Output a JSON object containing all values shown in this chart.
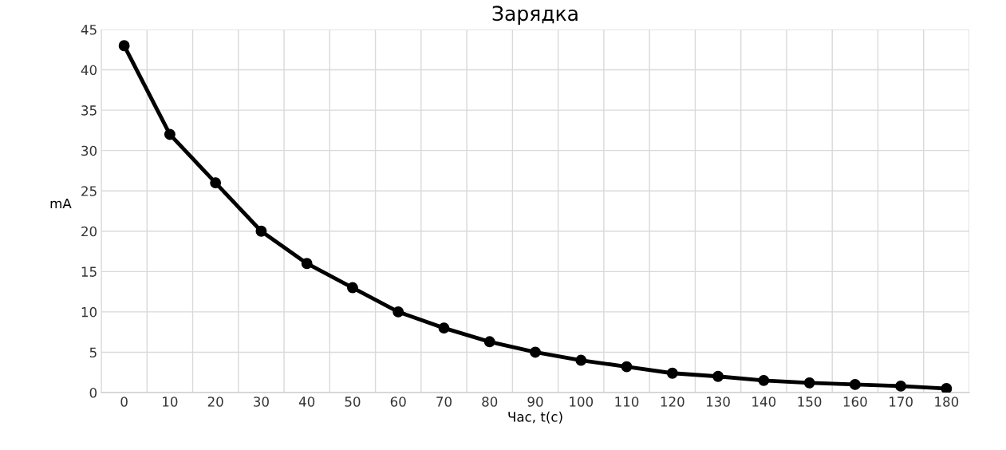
{
  "chart_data": {
    "type": "line",
    "title": "Зарядка",
    "xlabel": "Час, t(c)",
    "ylabel": "mA",
    "categories": [
      "0",
      "10",
      "20",
      "30",
      "40",
      "50",
      "60",
      "70",
      "80",
      "90",
      "100",
      "110",
      "120",
      "130",
      "140",
      "150",
      "160",
      "170",
      "180"
    ],
    "series": [
      {
        "color": "#000000",
        "values": [
          43,
          32,
          26,
          20,
          16,
          13,
          10,
          8,
          6.3,
          5,
          4,
          3.2,
          2.4,
          2,
          1.5,
          1.2,
          1,
          0.8,
          0.5
        ]
      }
    ],
    "ylim": [
      0,
      45
    ],
    "yticks": [
      0,
      5,
      10,
      15,
      20,
      25,
      30,
      35,
      40,
      45
    ],
    "grid": true,
    "marker": "circle",
    "line_style": "solid"
  }
}
